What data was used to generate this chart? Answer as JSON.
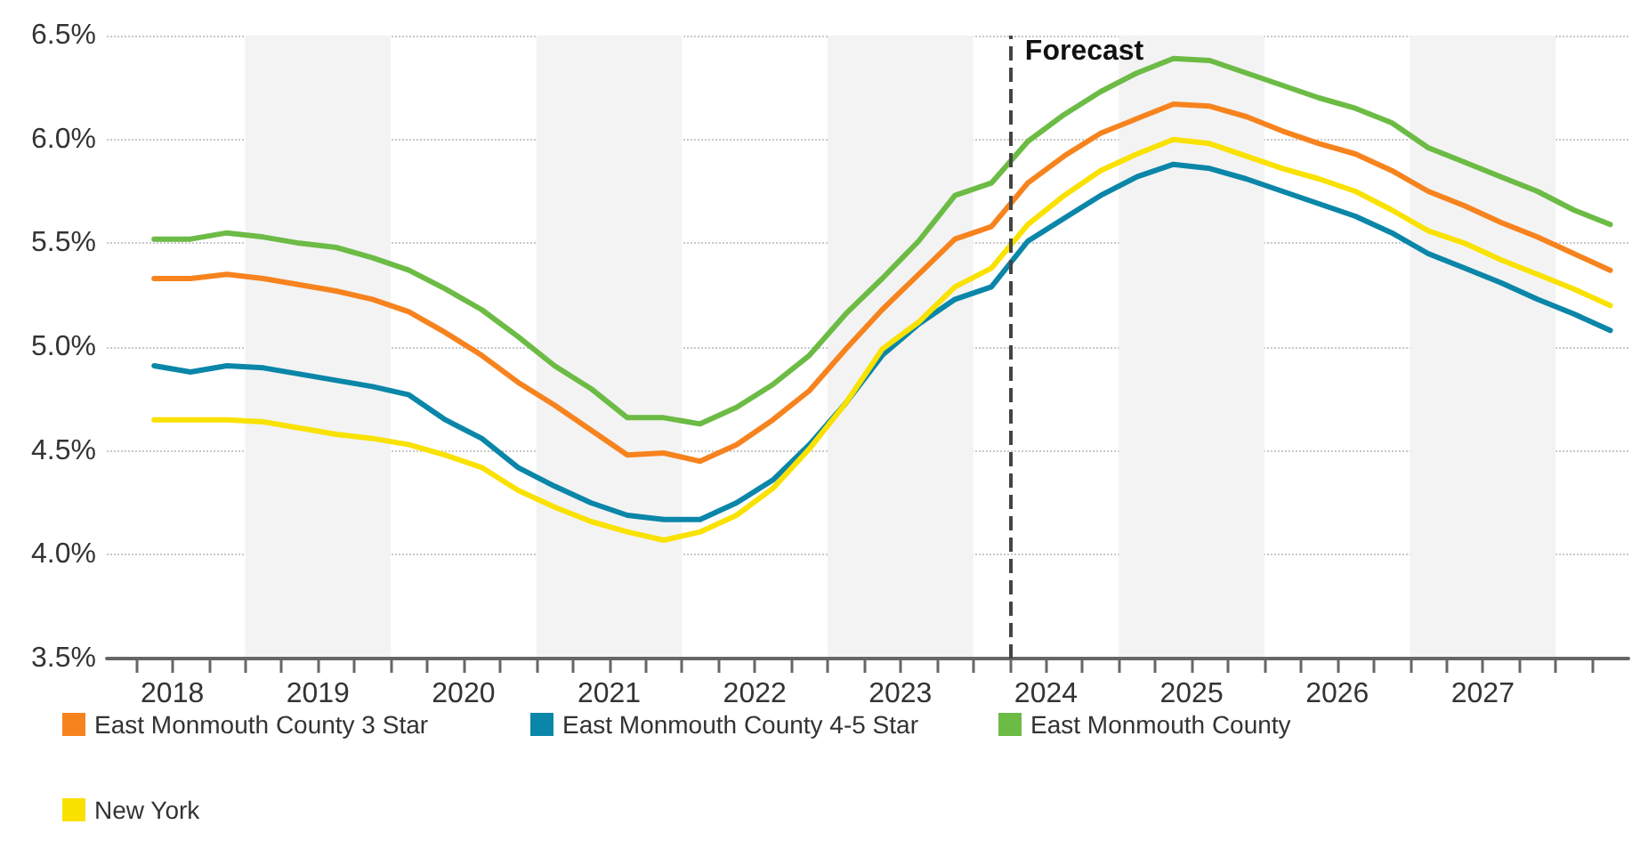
{
  "chart_data": {
    "type": "line",
    "x": [
      2018.375,
      2018.625,
      2018.875,
      2019.125,
      2019.375,
      2019.625,
      2019.875,
      2020.125,
      2020.375,
      2020.625,
      2020.875,
      2021.125,
      2021.375,
      2021.625,
      2021.875,
      2022.125,
      2022.375,
      2022.625,
      2022.875,
      2023.125,
      2023.375,
      2023.625,
      2023.875,
      2024.125,
      2024.375,
      2024.625,
      2024.875,
      2025.125,
      2025.375,
      2025.625,
      2025.875,
      2026.125,
      2026.375,
      2026.625,
      2026.875,
      2027.125,
      2027.375,
      2027.625,
      2027.875,
      2028.125,
      2028.375
    ],
    "series": [
      {
        "name": "East Monmouth County 3 Star",
        "color": "#f7831e",
        "values": [
          5.33,
          5.33,
          5.35,
          5.33,
          5.3,
          5.27,
          5.23,
          5.17,
          5.07,
          4.96,
          4.83,
          4.72,
          4.6,
          4.48,
          4.49,
          4.45,
          4.53,
          4.65,
          4.79,
          4.99,
          5.18,
          5.35,
          5.52,
          5.58,
          5.79,
          5.92,
          6.03,
          6.1,
          6.17,
          6.16,
          6.11,
          6.04,
          5.98,
          5.93,
          5.85,
          5.75,
          5.68,
          5.6,
          5.53,
          5.45,
          5.37
        ]
      },
      {
        "name": "East Monmouth County 4-5 Star",
        "color": "#0a86a8",
        "values": [
          4.91,
          4.88,
          4.91,
          4.9,
          4.87,
          4.84,
          4.81,
          4.77,
          4.65,
          4.56,
          4.42,
          4.33,
          4.25,
          4.19,
          4.17,
          4.17,
          4.25,
          4.36,
          4.53,
          4.73,
          4.96,
          5.11,
          5.23,
          5.29,
          5.51,
          5.62,
          5.73,
          5.82,
          5.88,
          5.86,
          5.81,
          5.75,
          5.69,
          5.63,
          5.55,
          5.45,
          5.38,
          5.31,
          5.23,
          5.16,
          5.08
        ]
      },
      {
        "name": "East Monmouth County",
        "color": "#6cbb45",
        "values": [
          5.52,
          5.52,
          5.55,
          5.53,
          5.5,
          5.48,
          5.43,
          5.37,
          5.28,
          5.18,
          5.05,
          4.91,
          4.8,
          4.66,
          4.66,
          4.63,
          4.71,
          4.82,
          4.96,
          5.16,
          5.33,
          5.51,
          5.73,
          5.79,
          5.99,
          6.12,
          6.23,
          6.32,
          6.39,
          6.38,
          6.32,
          6.26,
          6.2,
          6.15,
          6.08,
          5.96,
          5.89,
          5.82,
          5.75,
          5.66,
          5.59
        ]
      },
      {
        "name": "New York",
        "color": "#f9e100",
        "values": [
          4.65,
          4.65,
          4.65,
          4.64,
          4.61,
          4.58,
          4.56,
          4.53,
          4.48,
          4.42,
          4.31,
          4.23,
          4.16,
          4.11,
          4.07,
          4.11,
          4.19,
          4.32,
          4.51,
          4.73,
          4.99,
          5.12,
          5.29,
          5.38,
          5.59,
          5.73,
          5.85,
          5.93,
          6.0,
          5.98,
          5.92,
          5.86,
          5.81,
          5.75,
          5.66,
          5.56,
          5.5,
          5.42,
          5.35,
          5.28,
          5.2
        ]
      }
    ],
    "xlim": [
      2018.05,
      2028.5
    ],
    "xticks": [
      {
        "value": 2018.25,
        "label": null
      },
      {
        "value": 2018.5,
        "label": "2018"
      },
      {
        "value": 2018.75,
        "label": null
      },
      {
        "value": 2019,
        "label": null
      },
      {
        "value": 2019.25,
        "label": null
      },
      {
        "value": 2019.5,
        "label": "2019"
      },
      {
        "value": 2019.75,
        "label": null
      },
      {
        "value": 2020,
        "label": null
      },
      {
        "value": 2020.25,
        "label": null
      },
      {
        "value": 2020.5,
        "label": "2020"
      },
      {
        "value": 2020.75,
        "label": null
      },
      {
        "value": 2021,
        "label": null
      },
      {
        "value": 2021.25,
        "label": null
      },
      {
        "value": 2021.5,
        "label": "2021"
      },
      {
        "value": 2021.75,
        "label": null
      },
      {
        "value": 2022,
        "label": null
      },
      {
        "value": 2022.25,
        "label": null
      },
      {
        "value": 2022.5,
        "label": "2022"
      },
      {
        "value": 2022.75,
        "label": null
      },
      {
        "value": 2023,
        "label": null
      },
      {
        "value": 2023.25,
        "label": null
      },
      {
        "value": 2023.5,
        "label": "2023"
      },
      {
        "value": 2023.75,
        "label": null
      },
      {
        "value": 2024,
        "label": null
      },
      {
        "value": 2024.25,
        "label": null
      },
      {
        "value": 2024.5,
        "label": "2024"
      },
      {
        "value": 2024.75,
        "label": null
      },
      {
        "value": 2025,
        "label": null
      },
      {
        "value": 2025.25,
        "label": null
      },
      {
        "value": 2025.5,
        "label": "2025"
      },
      {
        "value": 2025.75,
        "label": null
      },
      {
        "value": 2026,
        "label": null
      },
      {
        "value": 2026.25,
        "label": null
      },
      {
        "value": 2026.5,
        "label": "2026"
      },
      {
        "value": 2026.75,
        "label": null
      },
      {
        "value": 2027,
        "label": null
      },
      {
        "value": 2027.25,
        "label": null
      },
      {
        "value": 2027.5,
        "label": "2027"
      },
      {
        "value": 2027.75,
        "label": null
      },
      {
        "value": 2028,
        "label": null
      },
      {
        "value": 2028.25,
        "label": null
      }
    ],
    "ylim": [
      3.5,
      6.5
    ],
    "yticks": [
      {
        "value": 3.5,
        "label": "3.5%"
      },
      {
        "value": 4.0,
        "label": "4.0%"
      },
      {
        "value": 4.5,
        "label": "4.5%"
      },
      {
        "value": 5.0,
        "label": "5.0%"
      },
      {
        "value": 5.5,
        "label": "5.5%"
      },
      {
        "value": 6.0,
        "label": "6.0%"
      },
      {
        "value": 6.5,
        "label": "6.5%"
      }
    ],
    "ref_lines": [
      {
        "axis": "x",
        "value": 2024.25,
        "label": "Forecast",
        "color": "#444444",
        "line_style": "dashed"
      }
    ],
    "bands": [
      {
        "axis": "x",
        "from": 2019,
        "to": 2020,
        "color": "#f3f3f3"
      },
      {
        "axis": "x",
        "from": 2021,
        "to": 2022,
        "color": "#f3f3f3"
      },
      {
        "axis": "x",
        "from": 2023,
        "to": 2024,
        "color": "#f3f3f3"
      },
      {
        "axis": "x",
        "from": 2025,
        "to": 2026,
        "color": "#f3f3f3"
      },
      {
        "axis": "x",
        "from": 2027,
        "to": 2028,
        "color": "#f3f3f3"
      }
    ],
    "grid": "y",
    "legend": "bottom",
    "marker": "none",
    "line_style": "solid"
  }
}
